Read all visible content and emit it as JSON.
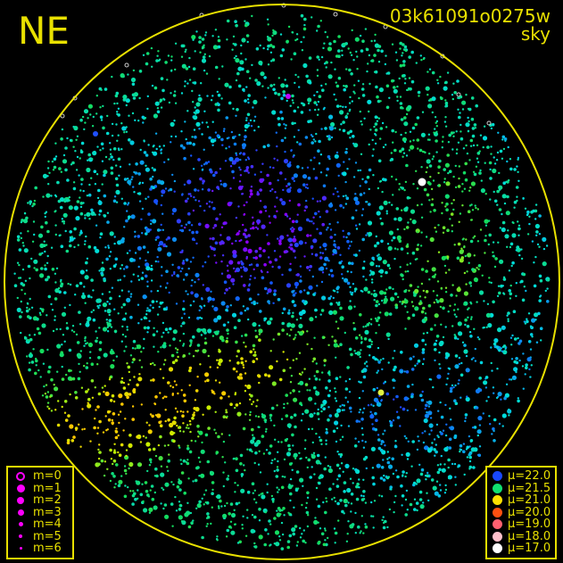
{
  "direction_label": "NE",
  "title": {
    "id": "03k61091o0275w",
    "subtitle": "sky"
  },
  "colors": {
    "frame": "#e8e000",
    "background": "#000000",
    "magnitude_symbol": "#ff00ff"
  },
  "magnitude_legend": [
    {
      "label": "m=0",
      "style": "ring"
    },
    {
      "label": "m=1"
    },
    {
      "label": "m=2"
    },
    {
      "label": "m=3"
    },
    {
      "label": "m=4"
    },
    {
      "label": "m=5"
    },
    {
      "label": "m=6"
    }
  ],
  "brightness_legend": [
    {
      "label": "μ=22.0",
      "color": "#1848ff"
    },
    {
      "label": "μ=21.5",
      "color": "#10e070"
    },
    {
      "label": "μ=21.0",
      "color": "#ffe000"
    },
    {
      "label": "μ=20.0",
      "color": "#ff5010"
    },
    {
      "label": "μ=19.0",
      "color": "#ff6070"
    },
    {
      "label": "μ=18.0",
      "color": "#ffc0cc"
    },
    {
      "label": "μ=17.0",
      "color": "#ffffff"
    }
  ]
}
